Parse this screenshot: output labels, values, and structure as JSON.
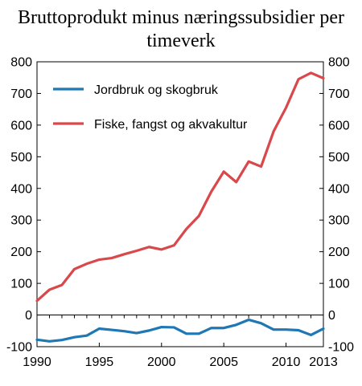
{
  "chart_data": {
    "type": "line",
    "title_lines": [
      "Bruttoprodukt minus næringssubsidier per",
      "timeverk"
    ],
    "xlabel": "",
    "ylabel": "",
    "xlim": [
      1990,
      2013
    ],
    "ylim": [
      -100,
      800
    ],
    "x_ticks": [
      "1990",
      "1995",
      "2000",
      "2005",
      "2010",
      "2013"
    ],
    "y_ticks": [
      "-100",
      "0",
      "100",
      "200",
      "300",
      "400",
      "500",
      "600",
      "700",
      "800"
    ],
    "grid": false,
    "legend_position": "top-left",
    "x": [
      1990,
      1991,
      1992,
      1993,
      1994,
      1995,
      1996,
      1997,
      1998,
      1999,
      2000,
      2001,
      2002,
      2003,
      2004,
      2005,
      2006,
      2007,
      2008,
      2009,
      2010,
      2011,
      2012,
      2013
    ],
    "series": [
      {
        "name": "Jordbruk og skogbruk",
        "color": "#1f77b4",
        "values": [
          -78,
          -83,
          -79,
          -70,
          -65,
          -43,
          -47,
          -51,
          -57,
          -49,
          -38,
          -39,
          -59,
          -59,
          -41,
          -41,
          -31,
          -15,
          -26,
          -46,
          -46,
          -48,
          -63,
          -43
        ]
      },
      {
        "name": "Fiske, fangst og akvakultur",
        "color": "#d9484a",
        "values": [
          45,
          80,
          95,
          145,
          162,
          175,
          180,
          192,
          203,
          215,
          207,
          220,
          272,
          313,
          390,
          453,
          420,
          485,
          469,
          580,
          655,
          745,
          765,
          748
        ]
      }
    ]
  }
}
